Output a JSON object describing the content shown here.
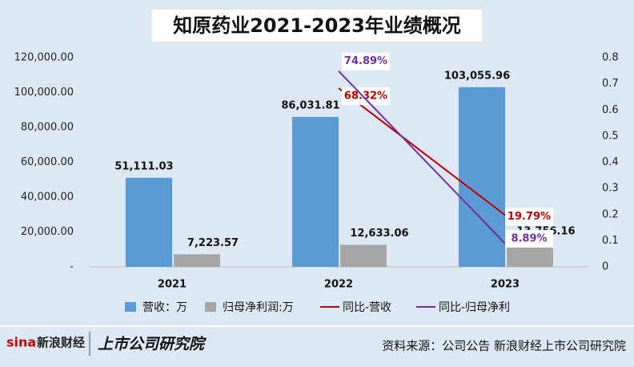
{
  "chart_data": {
    "type": "bar",
    "title": "知原药业2021-2023年业绩概况",
    "categories": [
      "2021",
      "2022",
      "2023"
    ],
    "series": [
      {
        "name": "营收：万",
        "color": "#5b9bd5",
        "values": [
          51111.03,
          86031.81,
          103055.96
        ],
        "value_labels": [
          "51,111.03",
          "86,031.81",
          "103,055.96"
        ]
      },
      {
        "name": "归母净利润:万",
        "color": "#a5a5a5",
        "values": [
          7223.57,
          12633.06,
          13756.16
        ],
        "value_labels": [
          "7,223.57",
          "12,633.06",
          "13,756.16"
        ]
      },
      {
        "name": "同比-营收",
        "color": "#c00000",
        "axis": "y2",
        "type": "line",
        "values": [
          null,
          0.6832,
          0.1979
        ],
        "value_labels": [
          null,
          "68.32%",
          "19.79%"
        ]
      },
      {
        "name": "同比-归母净利",
        "color": "#7030a0",
        "axis": "y2",
        "type": "line",
        "values": [
          null,
          0.7489,
          0.0889
        ],
        "value_labels": [
          null,
          "74.89%",
          "8.89%"
        ]
      }
    ],
    "ylim": [
      0,
      120000
    ],
    "yticks": [
      {
        "value": 0,
        "label": "-"
      },
      {
        "value": 20000,
        "label": "20,000.00"
      },
      {
        "value": 40000,
        "label": "40,000.00"
      },
      {
        "value": 60000,
        "label": "60,000.00"
      },
      {
        "value": 80000,
        "label": "80,000.00"
      },
      {
        "value": 100000,
        "label": "100,000.00"
      },
      {
        "value": 120000,
        "label": "120,000.00"
      }
    ],
    "y2lim": [
      0,
      0.8
    ],
    "y2ticks": [
      0,
      0.1,
      0.2,
      0.3,
      0.4,
      0.5,
      0.6,
      0.7,
      0.8
    ],
    "source": "资料来源：公司公告 新浪财经上市公司研究院",
    "logo_left": "新浪财经",
    "logo_right": "上市公司研究院"
  }
}
